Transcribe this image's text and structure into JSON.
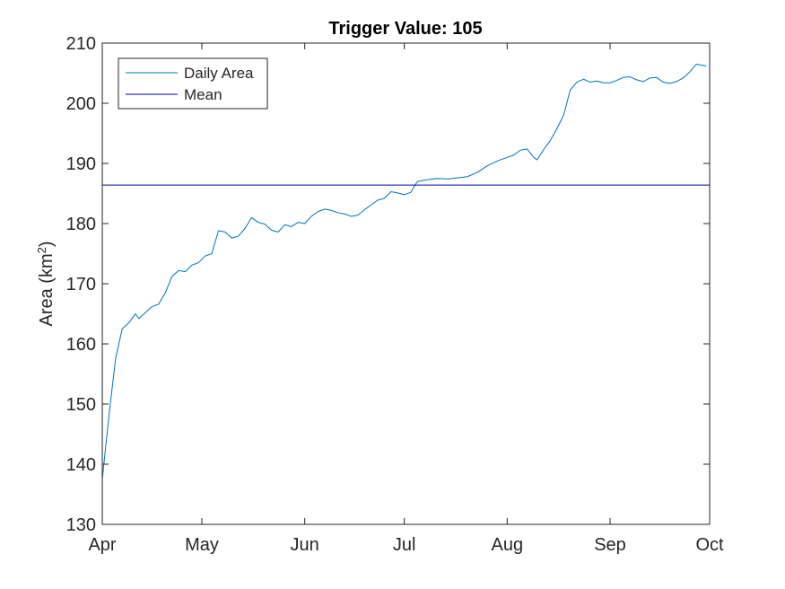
{
  "chart_data": {
    "type": "line",
    "title": "Trigger Value: 105",
    "ylabel_prefix": "Area (km",
    "ylabel_sup": "2",
    "ylabel_suffix": ")",
    "xlabel": "",
    "ylim": [
      130,
      210
    ],
    "yticks": [
      130,
      140,
      150,
      160,
      170,
      180,
      190,
      200,
      210
    ],
    "x_domain": [
      "Apr 1",
      "Oct 1"
    ],
    "xticks": [
      {
        "date": "Apr 1",
        "label": "Apr"
      },
      {
        "date": "May 1",
        "label": "May"
      },
      {
        "date": "Jun 1",
        "label": "Jun"
      },
      {
        "date": "Jul 1",
        "label": "Jul"
      },
      {
        "date": "Aug 1",
        "label": "Aug"
      },
      {
        "date": "Sep 1",
        "label": "Sep"
      },
      {
        "date": "Oct 1",
        "label": "Oct"
      }
    ],
    "grid": false,
    "legend_position": "top-left",
    "series": [
      {
        "name": "Daily Area",
        "color": "#0072BD",
        "points": [
          [
            "Apr 1",
            137.5
          ],
          [
            "Apr 3",
            148.0
          ],
          [
            "Apr 5",
            157.5
          ],
          [
            "Apr 7",
            162.5
          ],
          [
            "Apr 9",
            163.5
          ],
          [
            "Apr 11",
            165.0
          ],
          [
            "Apr 12",
            164.2
          ],
          [
            "Apr 14",
            165.2
          ],
          [
            "Apr 16",
            166.2
          ],
          [
            "Apr 18",
            166.6
          ],
          [
            "Apr 20",
            168.5
          ],
          [
            "Apr 22",
            171.2
          ],
          [
            "Apr 24",
            172.2
          ],
          [
            "Apr 26",
            172.0
          ],
          [
            "Apr 28",
            173.1
          ],
          [
            "Apr 30",
            173.5
          ],
          [
            "May 2",
            174.6
          ],
          [
            "May 4",
            175.0
          ],
          [
            "May 6",
            178.8
          ],
          [
            "May 8",
            178.6
          ],
          [
            "May 10",
            177.6
          ],
          [
            "May 12",
            177.9
          ],
          [
            "May 14",
            179.2
          ],
          [
            "May 16",
            181.0
          ],
          [
            "May 18",
            180.2
          ],
          [
            "May 20",
            179.9
          ],
          [
            "May 22",
            178.9
          ],
          [
            "May 24",
            178.6
          ],
          [
            "May 26",
            179.8
          ],
          [
            "May 28",
            179.5
          ],
          [
            "May 30",
            180.2
          ],
          [
            "Jun 1",
            180.0
          ],
          [
            "Jun 3",
            181.2
          ],
          [
            "Jun 5",
            182.0
          ],
          [
            "Jun 7",
            182.4
          ],
          [
            "Jun 9",
            182.2
          ],
          [
            "Jun 11",
            181.8
          ],
          [
            "Jun 13",
            181.6
          ],
          [
            "Jun 15",
            181.2
          ],
          [
            "Jun 17",
            181.4
          ],
          [
            "Jun 19",
            182.3
          ],
          [
            "Jun 21",
            183.1
          ],
          [
            "Jun 23",
            183.9
          ],
          [
            "Jun 25",
            184.2
          ],
          [
            "Jun 27",
            185.3
          ],
          [
            "Jun 29",
            185.1
          ],
          [
            "Jul 1",
            184.8
          ],
          [
            "Jul 3",
            185.2
          ],
          [
            "Jul 4",
            186.2
          ],
          [
            "Jul 5",
            187.0
          ],
          [
            "Jul 8",
            187.3
          ],
          [
            "Jul 11",
            187.5
          ],
          [
            "Jul 14",
            187.4
          ],
          [
            "Jul 17",
            187.6
          ],
          [
            "Jul 20",
            187.8
          ],
          [
            "Jul 23",
            188.5
          ],
          [
            "Jul 26",
            189.6
          ],
          [
            "Jul 29",
            190.4
          ],
          [
            "Aug 1",
            191.0
          ],
          [
            "Aug 3",
            191.4
          ],
          [
            "Aug 5",
            192.2
          ],
          [
            "Aug 7",
            192.4
          ],
          [
            "Aug 9",
            191.0
          ],
          [
            "Aug 10",
            190.6
          ],
          [
            "Aug 12",
            192.3
          ],
          [
            "Aug 14",
            193.8
          ],
          [
            "Aug 16",
            195.8
          ],
          [
            "Aug 18",
            198.0
          ],
          [
            "Aug 20",
            202.2
          ],
          [
            "Aug 22",
            203.5
          ],
          [
            "Aug 24",
            204.0
          ],
          [
            "Aug 26",
            203.5
          ],
          [
            "Aug 28",
            203.7
          ],
          [
            "Aug 30",
            203.4
          ],
          [
            "Sep 1",
            203.4
          ],
          [
            "Sep 3",
            203.8
          ],
          [
            "Sep 5",
            204.3
          ],
          [
            "Sep 7",
            204.4
          ],
          [
            "Sep 9",
            203.9
          ],
          [
            "Sep 11",
            203.6
          ],
          [
            "Sep 13",
            204.2
          ],
          [
            "Sep 15",
            204.3
          ],
          [
            "Sep 17",
            203.5
          ],
          [
            "Sep 19",
            203.3
          ],
          [
            "Sep 21",
            203.6
          ],
          [
            "Sep 23",
            204.2
          ],
          [
            "Sep 25",
            205.2
          ],
          [
            "Sep 27",
            206.5
          ],
          [
            "Sep 30",
            206.2
          ]
        ]
      },
      {
        "name": "Mean",
        "color": "#0000AA",
        "points": [
          [
            "Apr 1",
            186.4
          ],
          [
            "Oct 1",
            186.4
          ]
        ]
      }
    ]
  }
}
